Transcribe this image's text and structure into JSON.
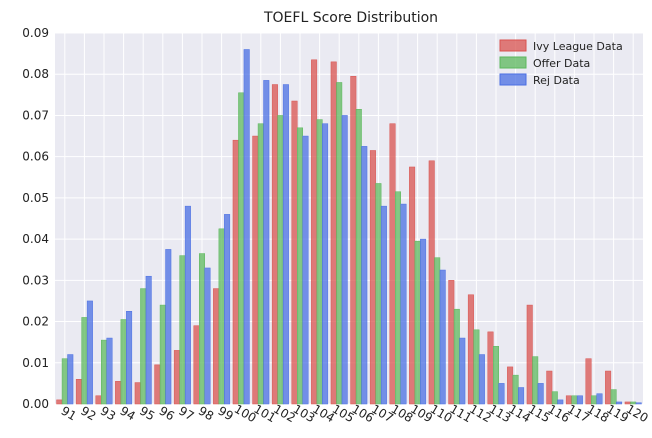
{
  "chart_data": {
    "type": "bar",
    "title": "TOEFL Score Distribution",
    "xlabel": "",
    "ylabel": "",
    "ylim": [
      0,
      0.09
    ],
    "yticks": [
      "0.00",
      "0.01",
      "0.02",
      "0.03",
      "0.04",
      "0.05",
      "0.06",
      "0.07",
      "0.08",
      "0.09"
    ],
    "grid": true,
    "legend_position": "top-right",
    "categories": [
      "91",
      "92",
      "93",
      "94",
      "95",
      "96",
      "97",
      "98",
      "99",
      "100",
      "101",
      "102",
      "103",
      "104",
      "105",
      "106",
      "107",
      "108",
      "109",
      "110",
      "111",
      "112",
      "113",
      "114",
      "115",
      "116",
      "117",
      "118",
      "119",
      "120"
    ],
    "series": [
      {
        "name": "Ivy League Data",
        "color": "#d9534f",
        "values": [
          0.001,
          0.006,
          0.002,
          0.0055,
          0.0052,
          0.0095,
          0.013,
          0.019,
          0.028,
          0.064,
          0.065,
          0.0775,
          0.0735,
          0.0835,
          0.083,
          0.0795,
          0.0615,
          0.068,
          0.0575,
          0.059,
          0.03,
          0.0265,
          0.0175,
          0.009,
          0.024,
          0.008,
          0.002,
          0.011,
          0.008,
          0.0005
        ]
      },
      {
        "name": "Offer Data",
        "color": "#5cb85c",
        "values": [
          0.011,
          0.021,
          0.0155,
          0.0205,
          0.028,
          0.024,
          0.036,
          0.0365,
          0.0425,
          0.0755,
          0.068,
          0.07,
          0.067,
          0.069,
          0.078,
          0.0715,
          0.0535,
          0.0515,
          0.0395,
          0.0355,
          0.023,
          0.018,
          0.014,
          0.007,
          0.0115,
          0.003,
          0.002,
          0.002,
          0.0035,
          0.0005
        ]
      },
      {
        "name": "Rej Data",
        "color": "#4a6fe3",
        "values": [
          0.012,
          0.025,
          0.016,
          0.0225,
          0.031,
          0.0375,
          0.048,
          0.033,
          0.046,
          0.086,
          0.0785,
          0.0775,
          0.065,
          0.068,
          0.07,
          0.0625,
          0.048,
          0.0485,
          0.04,
          0.0325,
          0.016,
          0.012,
          0.005,
          0.004,
          0.005,
          0.001,
          0.002,
          0.0025,
          0.0005,
          0.0003
        ]
      }
    ]
  }
}
